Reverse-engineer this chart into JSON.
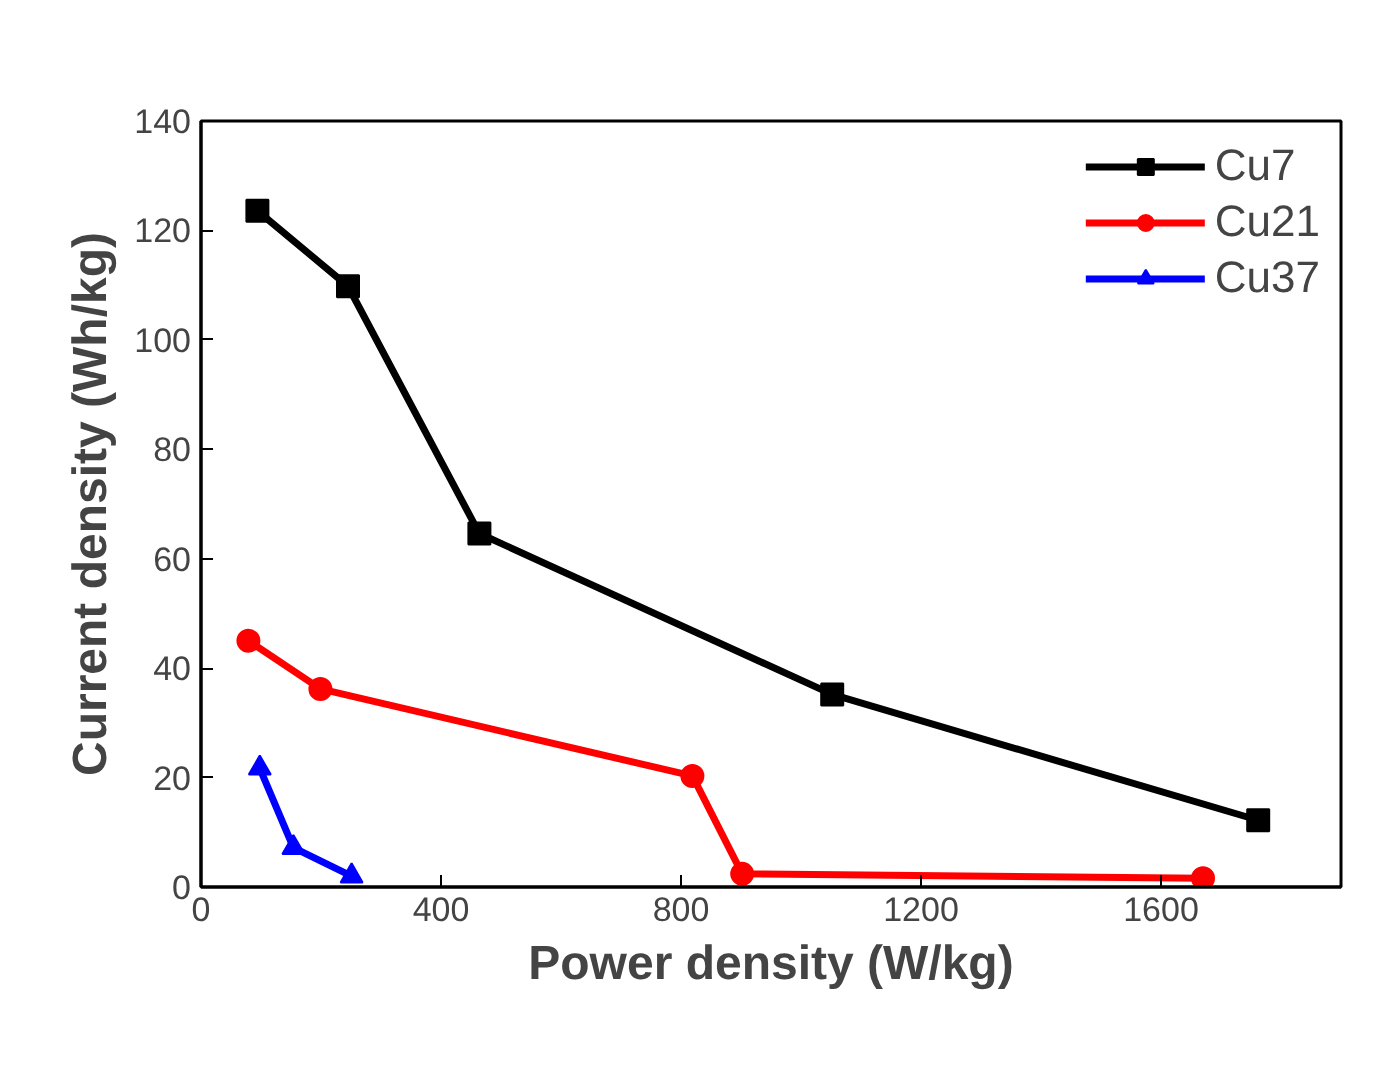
{
  "chart_data": {
    "type": "line",
    "xlabel": "Power density (W/kg)",
    "ylabel": "Current density (Wh/kg)",
    "xlim": [
      0,
      1900
    ],
    "xticks": [
      0,
      400,
      800,
      1200,
      1600
    ],
    "ylim": [
      0,
      140
    ],
    "yticks": [
      0,
      20,
      40,
      60,
      80,
      100,
      120,
      140
    ],
    "grid": false,
    "legend": "top right",
    "line_style": "solid",
    "series": [
      {
        "name": "Cu7",
        "color": "#000000",
        "marker": "square",
        "x": [
          94,
          245,
          464,
          1052,
          1762
        ],
        "values": [
          123.6,
          109.8,
          64.6,
          35.2,
          12.2
        ]
      },
      {
        "name": "Cu21",
        "color": "#ff0000",
        "marker": "circle",
        "x": [
          79,
          199,
          819,
          902,
          1670
        ],
        "values": [
          45,
          36.2,
          20.3,
          2.4,
          1.6
        ]
      },
      {
        "name": "Cu37",
        "color": "#0000ff",
        "marker": "triangle",
        "x": [
          98,
          154,
          251
        ],
        "values": [
          21.7,
          7.2,
          2.0
        ]
      }
    ]
  }
}
